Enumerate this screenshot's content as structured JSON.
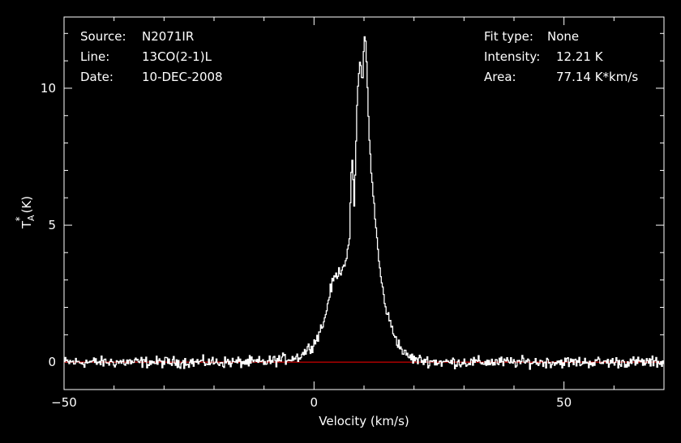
{
  "info": {
    "left": [
      {
        "key": "Source:",
        "value": "N2071IR"
      },
      {
        "key": "Line:",
        "value": "13CO(2-1)L"
      },
      {
        "key": "Date:",
        "value": "10-DEC-2008"
      }
    ],
    "right": [
      {
        "key": "Fit type:",
        "value": "None"
      },
      {
        "key": "Intensity:",
        "value": "12.21 K"
      },
      {
        "key": "Area:",
        "value": "77.14 K*km/s"
      }
    ]
  },
  "colors": {
    "background": "#000000",
    "axes": "#ffffff",
    "spectrum": "#ffffff",
    "baseline": "#ff0000"
  },
  "chart_data": {
    "type": "line",
    "xlabel": "Velocity (km/s)",
    "ylabel": "T*A (K)",
    "xlim": [
      -50,
      70
    ],
    "ylim": [
      -1,
      12.6
    ],
    "xticks": [
      -50,
      0,
      50
    ],
    "yticks": [
      0,
      5,
      10
    ],
    "grid": false,
    "baseline": 0,
    "series": [
      {
        "x": [
          -50,
          -25,
          -10,
          -3,
          0,
          2,
          3,
          4,
          5,
          6,
          7,
          7.5,
          8,
          8.4,
          8.8,
          9.2,
          9.6,
          10,
          10.3,
          10.6,
          11,
          12,
          13,
          14,
          15,
          16,
          17,
          18,
          20,
          25,
          40,
          70
        ],
        "y": [
          0,
          0,
          0,
          0.2,
          0.7,
          1.5,
          2.5,
          3.1,
          3.3,
          3.6,
          4.3,
          7.8,
          5.5,
          8.7,
          10.5,
          11.0,
          10.0,
          12.2,
          11.5,
          10.0,
          8.0,
          5.5,
          3.5,
          2.2,
          1.5,
          1.0,
          0.6,
          0.3,
          0.1,
          0,
          0,
          0
        ]
      }
    ]
  }
}
